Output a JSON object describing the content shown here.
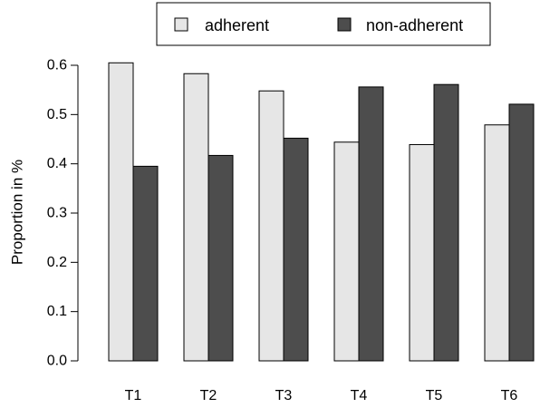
{
  "chart_data": {
    "type": "bar",
    "categories": [
      "T1",
      "T2",
      "T3",
      "T4",
      "T5",
      "T6"
    ],
    "series": [
      {
        "name": "adherent",
        "color": "#e6e6e6",
        "values": [
          0.605,
          0.583,
          0.548,
          0.444,
          0.439,
          0.479
        ]
      },
      {
        "name": "non-adherent",
        "color": "#4d4d4d",
        "values": [
          0.395,
          0.417,
          0.452,
          0.556,
          0.561,
          0.521
        ]
      }
    ],
    "title": "",
    "xlabel": "",
    "ylabel": "Proportion in %",
    "ylim": [
      0.0,
      0.6
    ],
    "yticks": [
      0.0,
      0.1,
      0.2,
      0.3,
      0.4,
      0.5,
      0.6
    ],
    "ytick_labels": [
      "0.0",
      "0.1",
      "0.2",
      "0.3",
      "0.4",
      "0.5",
      "0.6"
    ],
    "grid": false,
    "legend": {
      "placement": "top-center",
      "entries": [
        "adherent",
        "non-adherent"
      ]
    }
  }
}
